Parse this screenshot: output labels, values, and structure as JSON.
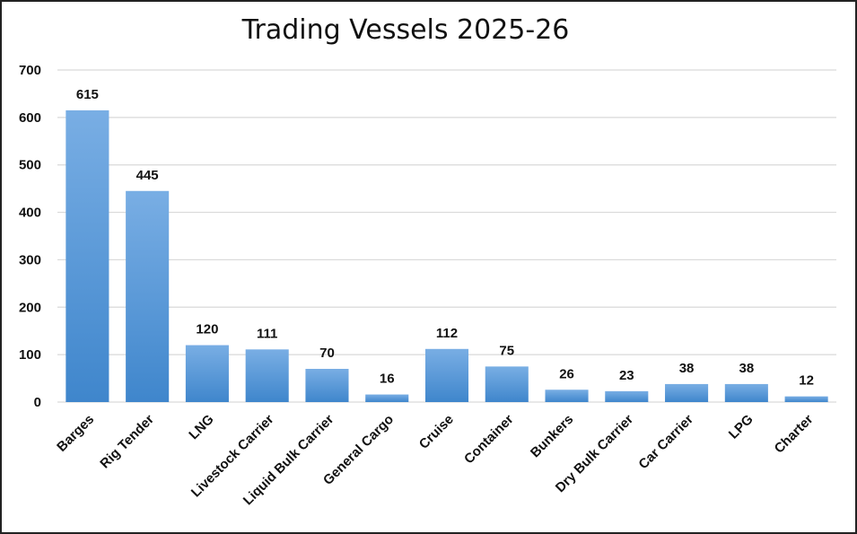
{
  "chart_data": {
    "type": "bar",
    "title": "Trading Vessels 2025-26",
    "xlabel": "",
    "ylabel": "",
    "ylim": [
      0,
      700
    ],
    "yticks": [
      0,
      100,
      200,
      300,
      400,
      500,
      600,
      700
    ],
    "grid": true,
    "legend": "none",
    "categories": [
      "Barges",
      "Rig Tender",
      "LNG",
      "Livestock Carrier",
      "Liquid Bulk Carrier",
      "General Cargo",
      "Cruise",
      "Container",
      "Bunkers",
      "Dry Bulk Carrier",
      "Car Carrier",
      "LPG",
      "Charter"
    ],
    "values": [
      615,
      445,
      120,
      111,
      70,
      16,
      112,
      75,
      26,
      23,
      38,
      38,
      12
    ],
    "colors": {
      "bar_top": "#79aee4",
      "bar_bottom": "#3f86cc",
      "grid": "#d9d9d9"
    }
  }
}
